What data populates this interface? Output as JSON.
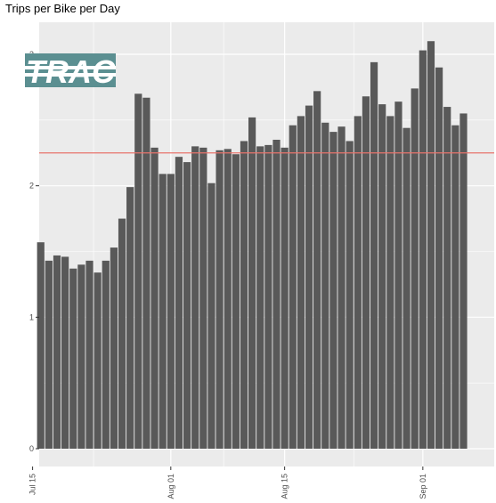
{
  "chart_data": {
    "type": "bar",
    "title": "Trips per Bike per Day",
    "xlabel": "",
    "ylabel": "",
    "x_tick_labels": [
      "Jul 15",
      "Aug 01",
      "Aug 15",
      "Sep 01"
    ],
    "y_tick_labels": [
      "0",
      "1",
      "2",
      "3"
    ],
    "ylim": [
      0,
      3.3
    ],
    "grid": true,
    "reference_line": {
      "value": 2.25,
      "color": "#e8756d"
    },
    "logo_text": "TRAC",
    "colors": {
      "bars": "#595959",
      "panel": "#ebebeb",
      "grid": "#ffffff",
      "logo_bg": "#5b8f91"
    },
    "x": [
      "2017-07-16",
      "2017-07-17",
      "2017-07-18",
      "2017-07-19",
      "2017-07-20",
      "2017-07-21",
      "2017-07-22",
      "2017-07-23",
      "2017-07-24",
      "2017-07-25",
      "2017-07-26",
      "2017-07-27",
      "2017-07-28",
      "2017-07-29",
      "2017-07-30",
      "2017-07-31",
      "2017-08-01",
      "2017-08-02",
      "2017-08-03",
      "2017-08-04",
      "2017-08-05",
      "2017-08-06",
      "2017-08-07",
      "2017-08-08",
      "2017-08-09",
      "2017-08-10",
      "2017-08-11",
      "2017-08-12",
      "2017-08-13",
      "2017-08-14",
      "2017-08-15",
      "2017-08-16",
      "2017-08-17",
      "2017-08-18",
      "2017-08-19",
      "2017-08-20",
      "2017-08-21",
      "2017-08-22",
      "2017-08-23",
      "2017-08-24",
      "2017-08-25",
      "2017-08-26",
      "2017-08-27",
      "2017-08-28",
      "2017-08-29",
      "2017-08-30",
      "2017-08-31",
      "2017-09-01",
      "2017-09-02",
      "2017-09-03",
      "2017-09-04",
      "2017-09-05",
      "2017-09-06"
    ],
    "values": [
      1.57,
      1.43,
      1.47,
      1.46,
      1.37,
      1.4,
      1.43,
      1.34,
      1.43,
      1.53,
      1.75,
      1.99,
      2.7,
      2.67,
      2.29,
      2.09,
      2.09,
      2.22,
      2.18,
      2.3,
      2.29,
      2.02,
      2.27,
      2.28,
      2.24,
      2.34,
      2.52,
      2.3,
      2.31,
      2.35,
      2.29,
      2.46,
      2.53,
      2.61,
      2.72,
      2.48,
      2.41,
      2.45,
      2.34,
      2.53,
      2.68,
      2.94,
      2.62,
      2.53,
      2.64,
      2.44,
      2.74,
      3.03,
      3.1,
      2.9,
      2.6,
      2.46,
      2.55
    ]
  }
}
